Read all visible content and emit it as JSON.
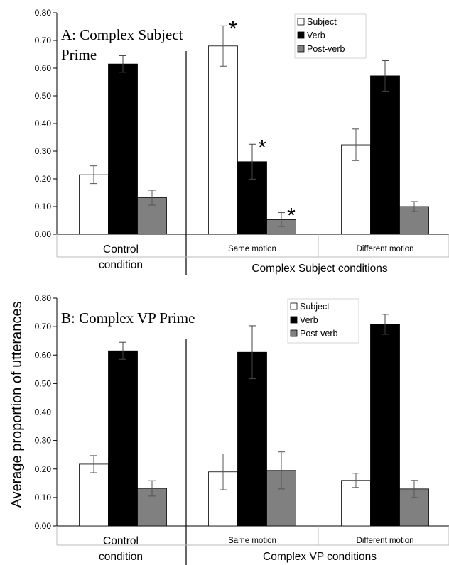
{
  "y_axis_label": "Average proportion of utterances",
  "chart_data": [
    {
      "type": "bar",
      "title": "A: Complex Subject Prime",
      "title_lines": [
        "A: Complex Subject",
        "Prime"
      ],
      "ylim": [
        0,
        0.8
      ],
      "yticks": [
        "0.00",
        "0.10",
        "0.20",
        "0.30",
        "0.40",
        "0.50",
        "0.60",
        "0.70",
        "0.80"
      ],
      "legend_position": "top-right",
      "series": [
        {
          "name": "Subject",
          "color": "#ffffff",
          "values": [
            0.215,
            0.68,
            0.323
          ],
          "errors": [
            0.032,
            0.073,
            0.057
          ]
        },
        {
          "name": "Verb",
          "color": "#000000",
          "values": [
            0.615,
            0.262,
            0.572
          ],
          "errors": [
            0.03,
            0.063,
            0.055
          ]
        },
        {
          "name": "Post-verb",
          "color": "#808080",
          "values": [
            0.132,
            0.053,
            0.1
          ],
          "errors": [
            0.027,
            0.025,
            0.018
          ]
        }
      ],
      "groups": [
        {
          "label_lines": [
            "Control",
            "condition"
          ],
          "size": "big"
        },
        {
          "label_lines": [
            "Same motion"
          ],
          "size": "small"
        },
        {
          "label_lines": [
            "Different motion"
          ],
          "size": "small"
        }
      ],
      "group_caption": "Complex Subject conditions",
      "significance_markers": [
        {
          "group": 1,
          "series": 0,
          "label": "*"
        },
        {
          "group": 1,
          "series": 1,
          "label": "*"
        },
        {
          "group": 1,
          "series": 2,
          "label": "*"
        }
      ]
    },
    {
      "type": "bar",
      "title": "B: Complex VP Prime",
      "title_lines": [
        "B: Complex VP Prime"
      ],
      "ylim": [
        0,
        0.8
      ],
      "yticks": [
        "0.00",
        "0.10",
        "0.20",
        "0.30",
        "0.40",
        "0.50",
        "0.60",
        "0.70",
        "0.80"
      ],
      "legend_position": "top-right",
      "series": [
        {
          "name": "Subject",
          "color": "#ffffff",
          "values": [
            0.217,
            0.19,
            0.16
          ],
          "errors": [
            0.03,
            0.063,
            0.025
          ]
        },
        {
          "name": "Verb",
          "color": "#000000",
          "values": [
            0.615,
            0.61,
            0.708
          ],
          "errors": [
            0.03,
            0.093,
            0.035
          ]
        },
        {
          "name": "Post-verb",
          "color": "#808080",
          "values": [
            0.132,
            0.195,
            0.13
          ],
          "errors": [
            0.027,
            0.065,
            0.03
          ]
        }
      ],
      "groups": [
        {
          "label_lines": [
            "Control",
            "condition"
          ],
          "size": "big"
        },
        {
          "label_lines": [
            "Same motion"
          ],
          "size": "small"
        },
        {
          "label_lines": [
            "Different motion"
          ],
          "size": "small"
        }
      ],
      "group_caption": "Complex VP conditions",
      "significance_markers": []
    }
  ]
}
